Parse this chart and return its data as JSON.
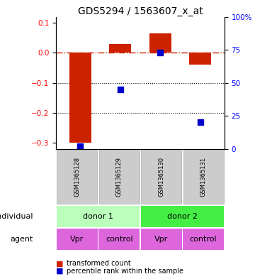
{
  "title": "GDS5294 / 1563607_x_at",
  "samples": [
    "GSM1365128",
    "GSM1365129",
    "GSM1365130",
    "GSM1365131"
  ],
  "bar_values": [
    -0.3,
    0.03,
    0.065,
    -0.04
  ],
  "percentile_values": [
    2,
    45,
    73,
    20
  ],
  "ylim": [
    -0.32,
    0.12
  ],
  "yticks_left": [
    -0.3,
    -0.2,
    -0.1,
    0.0,
    0.1
  ],
  "yticks_right_pct": [
    0,
    25,
    50,
    75,
    100
  ],
  "bar_color": "#cc2200",
  "dot_color": "#0000cc",
  "hline_color": "#cc2200",
  "bar_width": 0.55,
  "donor1_color": "#bbffbb",
  "donor2_color": "#44ee44",
  "agent_color": "#dd66dd",
  "gsm_bg": "#cccccc",
  "title_fontsize": 10,
  "tick_fontsize": 7.5,
  "dot_size": 30
}
